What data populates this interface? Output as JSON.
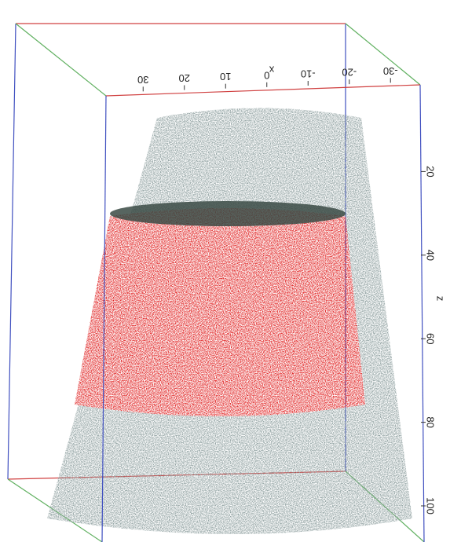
{
  "chart_data": {
    "type": "scatter3d",
    "x_label": "x",
    "z_label": "z",
    "xlim": [
      -35,
      35
    ],
    "xticks": [
      30,
      20,
      10,
      0,
      -10,
      -20,
      -30
    ],
    "zlim": [
      0,
      105
    ],
    "zticks": [
      20,
      40,
      60,
      80,
      100
    ]
  }
}
